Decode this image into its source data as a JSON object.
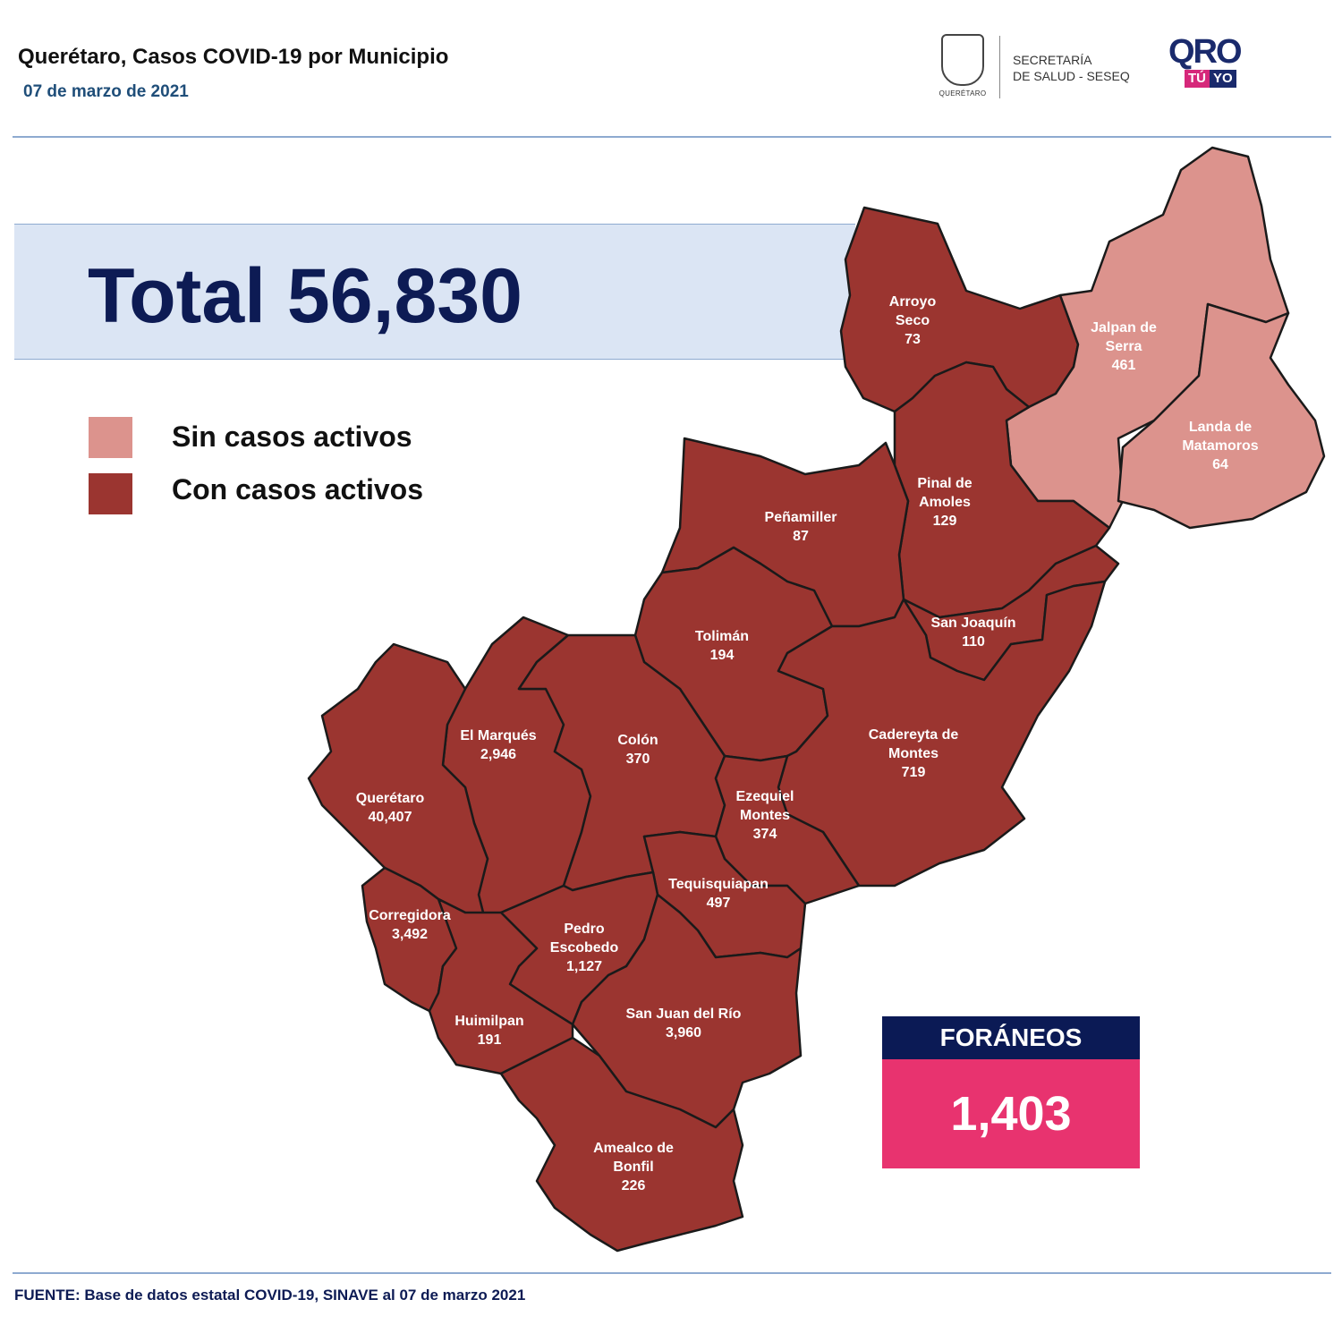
{
  "header": {
    "title": "Querétaro, Casos COVID-19 por Municipio",
    "date": "07 de marzo de 2021",
    "logo_state_caption": "QUERÉTARO",
    "secretaria": "SECRETARÍA",
    "salud": "DE SALUD - SESEQ",
    "qro_text": "QRO",
    "tu": "TÚ",
    "yo": "YO"
  },
  "total": {
    "text": "Total 56,830"
  },
  "legend": {
    "sin": "Sin casos activos",
    "con": "Con casos activos"
  },
  "colors": {
    "sin_casos": "#dc938d",
    "con_casos": "#9b3530",
    "border": "#1a1a1a",
    "navy": "#0b1a55",
    "pink": "#e8336f"
  },
  "municipios": [
    {
      "name": "Arroyo",
      "name2": "Seco",
      "value": "73",
      "status": "con"
    },
    {
      "name": "Jalpan de",
      "name2": "Serra",
      "value": "461",
      "status": "sin"
    },
    {
      "name": "Landa de",
      "name2": "Matamoros",
      "value": "64",
      "status": "sin"
    },
    {
      "name": "Pinal de",
      "name2": "Amoles",
      "value": "129",
      "status": "con"
    },
    {
      "name": "Peñamiller",
      "name2": "",
      "value": "87",
      "status": "con"
    },
    {
      "name": "San Joaquín",
      "name2": "",
      "value": "110",
      "status": "con"
    },
    {
      "name": "Tolimán",
      "name2": "",
      "value": "194",
      "status": "con"
    },
    {
      "name": "Cadereyta de",
      "name2": "Montes",
      "value": "719",
      "status": "con"
    },
    {
      "name": "El  Marqués",
      "name2": "",
      "value": "2,946",
      "status": "con"
    },
    {
      "name": "Colón",
      "name2": "",
      "value": "370",
      "status": "con"
    },
    {
      "name": "Ezequiel",
      "name2": "Montes",
      "value": "374",
      "status": "con"
    },
    {
      "name": "Querétaro",
      "name2": "",
      "value": "40,407",
      "status": "con"
    },
    {
      "name": "Tequisquiapan",
      "name2": "",
      "value": "497",
      "status": "con"
    },
    {
      "name": "Corregidora",
      "name2": "",
      "value": "3,492",
      "status": "con"
    },
    {
      "name": "Pedro",
      "name2": "Escobedo",
      "value": "1,127",
      "status": "con"
    },
    {
      "name": "San Juan del Río",
      "name2": "",
      "value": "3,960",
      "status": "con"
    },
    {
      "name": "Huimilpan",
      "name2": "",
      "value": "191",
      "status": "con"
    },
    {
      "name": "Amealco de",
      "name2": "Bonfil",
      "value": "226",
      "status": "con"
    }
  ],
  "foraneos": {
    "label": "FORÁNEOS",
    "value": "1,403"
  },
  "footer": {
    "fuente": "FUENTE: Base de datos estatal COVID-19, SINAVE al 07 de marzo 2021"
  }
}
